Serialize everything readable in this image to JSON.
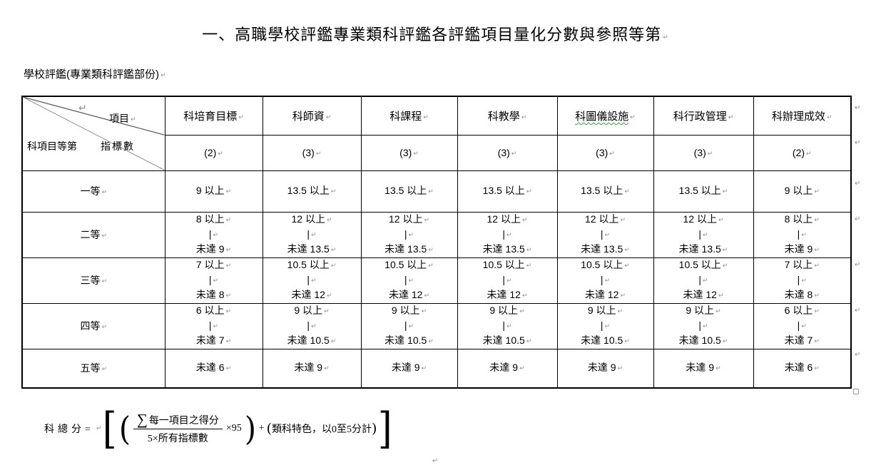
{
  "page": {
    "title": "一、高職學校評鑑專業類科評鑑各評鑑項目量化分數與參照等第",
    "subtitle": "學校評鑑(專業類科評鑑部份)",
    "paragraph_mark": "↵"
  },
  "table": {
    "corner": {
      "col_axis_label": "項目",
      "row_axis_label": "科項目等第",
      "indicator_label": "指標數"
    },
    "columns": [
      {
        "label": "科培育目標",
        "indicators": "(2)",
        "spellcheck": false
      },
      {
        "label": "科師資",
        "indicators": "(3)",
        "spellcheck": false
      },
      {
        "label": "科課程",
        "indicators": "(3)",
        "spellcheck": false
      },
      {
        "label": "科教學",
        "indicators": "(3)",
        "spellcheck": false
      },
      {
        "label": "科圖儀設施",
        "indicators": "(3)",
        "spellcheck": true
      },
      {
        "label": "科行政管理",
        "indicators": "(3)",
        "spellcheck": false
      },
      {
        "label": "科辦理成效",
        "indicators": "(2)",
        "spellcheck": false
      }
    ],
    "rows": [
      {
        "grade": "一等",
        "cells": [
          [
            "9 以上"
          ],
          [
            "13.5 以上"
          ],
          [
            "13.5 以上"
          ],
          [
            "13.5 以上"
          ],
          [
            "13.5 以上"
          ],
          [
            "13.5 以上"
          ],
          [
            "9 以上"
          ]
        ]
      },
      {
        "grade": "二等",
        "cells": [
          [
            "8 以上",
            "|",
            "未達 9"
          ],
          [
            "12 以上",
            "|",
            "未達 13.5"
          ],
          [
            "12 以上",
            "|",
            "未達 13.5"
          ],
          [
            "12 以上",
            "|",
            "未達 13.5"
          ],
          [
            "12 以上",
            "|",
            "未達 13.5"
          ],
          [
            "12 以上",
            "|",
            "未達 13.5"
          ],
          [
            "8 以上",
            "|",
            "未達 9"
          ]
        ]
      },
      {
        "grade": "三等",
        "cells": [
          [
            "7 以上",
            "|",
            "未達 8"
          ],
          [
            "10.5 以上",
            "|",
            "未達 12"
          ],
          [
            "10.5 以上",
            "|",
            "未達 12"
          ],
          [
            "10.5 以上",
            "|",
            "未達 12"
          ],
          [
            "10.5 以上",
            "|",
            "未達 12"
          ],
          [
            "10.5 以上",
            "|",
            "未達 12"
          ],
          [
            "7 以上",
            "|",
            "未達 8"
          ]
        ]
      },
      {
        "grade": "四等",
        "cells": [
          [
            "6 以上",
            "|",
            "未達 7"
          ],
          [
            "9 以上",
            "|",
            "未達 10.5"
          ],
          [
            "9 以上",
            "|",
            "未達 10.5"
          ],
          [
            "9 以上",
            "|",
            "未達 10.5"
          ],
          [
            "9 以上",
            "|",
            "未達 10.5"
          ],
          [
            "9 以上",
            "|",
            "未達 10.5"
          ],
          [
            "6 以上",
            "|",
            "未達 7"
          ]
        ]
      },
      {
        "grade": "五等",
        "cells": [
          [
            "未達 6"
          ],
          [
            "未達 9"
          ],
          [
            "未達 9"
          ],
          [
            "未達 9"
          ],
          [
            "未達 9"
          ],
          [
            "未達 9"
          ],
          [
            "未達 6"
          ]
        ]
      }
    ]
  },
  "formula": {
    "label": "科總分=",
    "open_bracket": "[",
    "open_paren": "(",
    "sigma": "∑",
    "numerator": "每一項目之得分",
    "denominator": "5×所有指標數",
    "times": "×95",
    "close_paren": ")",
    "plus": "+",
    "feature_open": "(",
    "feature_term": "類科特色，以0至5分計",
    "feature_close": ")",
    "close_bracket": "]"
  }
}
